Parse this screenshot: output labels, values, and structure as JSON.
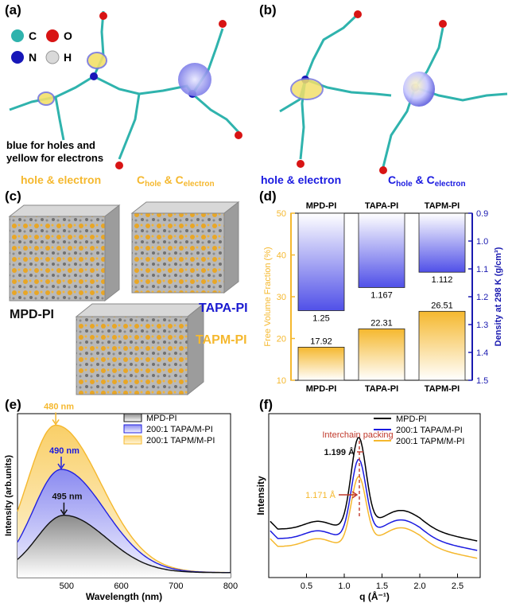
{
  "panels": {
    "a": {
      "label": "(a)",
      "legend": [
        {
          "symbol": "C",
          "color": "#2fb3ad"
        },
        {
          "symbol": "O",
          "color": "#d81414"
        },
        {
          "symbol": "N",
          "color": "#1717b8"
        },
        {
          "symbol": "H",
          "color": "#d9d9d9"
        }
      ],
      "note_line1": "blue for holes and",
      "note_line2": "yellow for electrons",
      "caption_left": "hole & electron",
      "caption_right_prefix": "C",
      "caption_right_sub1": "hole",
      "caption_right_mid": " & C",
      "caption_right_sub2": "electron",
      "caption_color": "#f5b82e"
    },
    "b": {
      "label": "(b)",
      "caption_left": "hole & electron",
      "caption_right_prefix": "C",
      "caption_right_sub1": "hole",
      "caption_right_mid": " & C",
      "caption_right_sub2": "electron",
      "caption_color": "#1a1ae0"
    },
    "c": {
      "label": "(c)",
      "boxes": [
        {
          "name": "MPD-PI",
          "color": "#111111"
        },
        {
          "name": "TAPA-PI",
          "color": "#1a1ad0"
        },
        {
          "name": "TAPM-PI",
          "color": "#f5b82e"
        }
      ]
    },
    "d": {
      "label": "(d)"
    },
    "e": {
      "label": "(e)"
    },
    "f": {
      "label": "(f)"
    }
  },
  "chart_data": [
    {
      "id": "d",
      "type": "bar",
      "categories": [
        "MPD-PI",
        "TAPA-PI",
        "TAPM-PI"
      ],
      "top_categories": [
        "MPD-PI",
        "TAPA-PI",
        "TAPM-PI"
      ],
      "series": [
        {
          "name": "Free Volume Fraction (%)",
          "axis": "left",
          "values": [
            17.92,
            22.31,
            26.51
          ],
          "labels": [
            "17.92",
            "22.31",
            "26.51"
          ],
          "color": "#f5b82e"
        },
        {
          "name": "Density at 298 K (g/cm³)",
          "axis": "right",
          "values": [
            1.25,
            1.167,
            1.112
          ],
          "labels": [
            "1.25",
            "1.167",
            "1.112"
          ],
          "color": "#3a3ae0"
        }
      ],
      "ylabel_left": "Free Volume Fraction (%)",
      "ylabel_right": "Density at 298 K (g/cm³)",
      "ylim_left": [
        10,
        50
      ],
      "yticks_left": [
        "10",
        "20",
        "30",
        "40",
        "50"
      ],
      "ylim_right": [
        0.9,
        1.5
      ],
      "yticks_right": [
        "0.9",
        "1.0",
        "1.1",
        "1.2",
        "1.3",
        "1.4",
        "1.5"
      ],
      "left_axis_color": "#f5b82e",
      "right_axis_color": "#1a1ab0"
    },
    {
      "id": "e",
      "type": "area",
      "xlabel": "Wavelength (nm)",
      "ylabel": "Intensity (arb.units)",
      "xlim": [
        410,
        800
      ],
      "xticks": [
        "500",
        "600",
        "700",
        "800"
      ],
      "series": [
        {
          "name": "MPD-PI",
          "peak_nm": 495,
          "peak_value": 0.35,
          "color": "#111111"
        },
        {
          "name": "200:1 TAPA/M-PI",
          "peak_nm": 490,
          "peak_value": 0.63,
          "color": "#2222e0"
        },
        {
          "name": "200:1 TAPM/M-PI",
          "peak_nm": 480,
          "peak_value": 0.9,
          "color": "#f5b82e"
        }
      ],
      "annotations": [
        {
          "text": "480 nm",
          "color": "#f5b82e"
        },
        {
          "text": "490 nm",
          "color": "#1a1ae0"
        },
        {
          "text": "495 nm",
          "color": "#111111"
        }
      ]
    },
    {
      "id": "f",
      "type": "line",
      "xlabel": "q (Å⁻¹)",
      "ylabel": "Intensity",
      "xlim": [
        0,
        2.8
      ],
      "xticks": [
        "0.5",
        "1.0",
        "1.5",
        "2.0",
        "2.5"
      ],
      "series": [
        {
          "name": "MPD-PI",
          "color": "#000000"
        },
        {
          "name": "200:1 TAPA/M-PI",
          "color": "#1a1ae0"
        },
        {
          "name": "200:1 TAPM/M-PI",
          "color": "#f5b82e"
        }
      ],
      "annotations": [
        {
          "text": "Interchain packing",
          "color": "#c0392b"
        },
        {
          "text": "1.199 Å",
          "color": "#111111"
        },
        {
          "text": "1.171 Å",
          "color": "#f5b82e"
        }
      ]
    }
  ]
}
